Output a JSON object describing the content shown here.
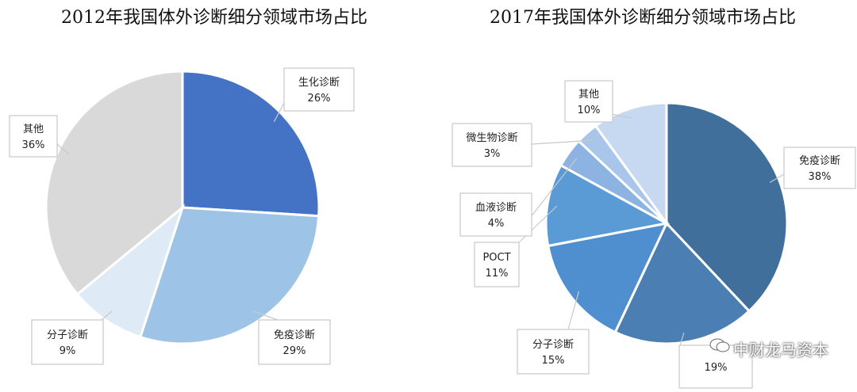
{
  "chart_data": [
    {
      "type": "pie",
      "title": "2012年我国体外诊断细分领域市场占比",
      "series": [
        {
          "label": "生化诊断",
          "value": 26,
          "value_label": "26%",
          "color": "#4472c4"
        },
        {
          "label": "免疫诊断",
          "value": 29,
          "value_label": "29%",
          "color": "#9dc3e6"
        },
        {
          "label": "分子诊断",
          "value": 9,
          "value_label": "9%",
          "color": "#deebf7"
        },
        {
          "label": "其他",
          "value": 36,
          "value_label": "36%",
          "color": "#d9d9d9"
        }
      ]
    },
    {
      "type": "pie",
      "title": "2017年我国体外诊断细分领域市场占比",
      "series": [
        {
          "label": "免疫诊断",
          "value": 38,
          "value_label": "38%",
          "color": "#3f6f9a"
        },
        {
          "label": "",
          "value": 19,
          "value_label": "19%",
          "color": "#4b7fb3"
        },
        {
          "label": "分子诊断",
          "value": 15,
          "value_label": "15%",
          "color": "#4f8fd0"
        },
        {
          "label": "POCT",
          "value": 11,
          "value_label": "11%",
          "color": "#5b9bd5"
        },
        {
          "label": "血液诊断",
          "value": 4,
          "value_label": "4%",
          "color": "#8db3e2"
        },
        {
          "label": "微生物诊断",
          "value": 3,
          "value_label": "3%",
          "color": "#a9c6ea"
        },
        {
          "label": "其他",
          "value": 10,
          "value_label": "10%",
          "color": "#c6d9f0"
        }
      ]
    }
  ],
  "watermark": {
    "text": "中财龙马资本"
  }
}
